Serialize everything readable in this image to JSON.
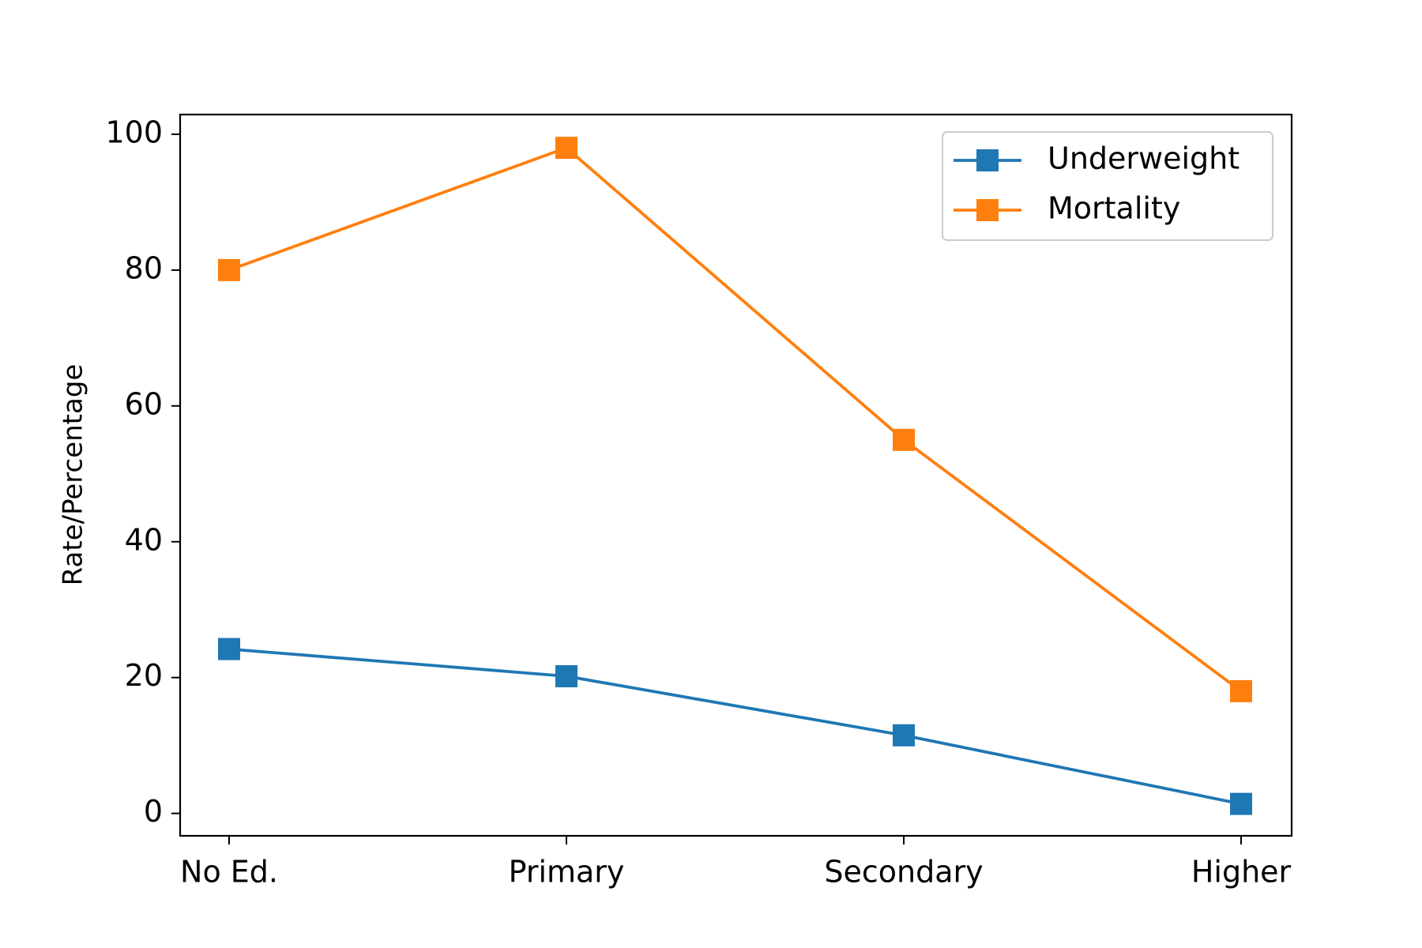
{
  "chart_data": {
    "type": "line",
    "title": "",
    "xlabel": "",
    "ylabel": "Rate/Percentage",
    "categories": [
      "No Ed.",
      "Primary",
      "Secondary",
      "Higher"
    ],
    "ylim": [
      -3.3,
      102.9
    ],
    "yticks": [
      0,
      20,
      40,
      60,
      80,
      100
    ],
    "grid": false,
    "legend_position": "top-right",
    "series": [
      {
        "name": "Underweight",
        "color": "#1f77b4",
        "marker": "square",
        "values": [
          24.2,
          20.2,
          11.5,
          1.4
        ]
      },
      {
        "name": "Mortality",
        "color": "#ff7f0e",
        "marker": "square",
        "values": [
          80,
          98,
          55,
          18
        ]
      }
    ]
  }
}
